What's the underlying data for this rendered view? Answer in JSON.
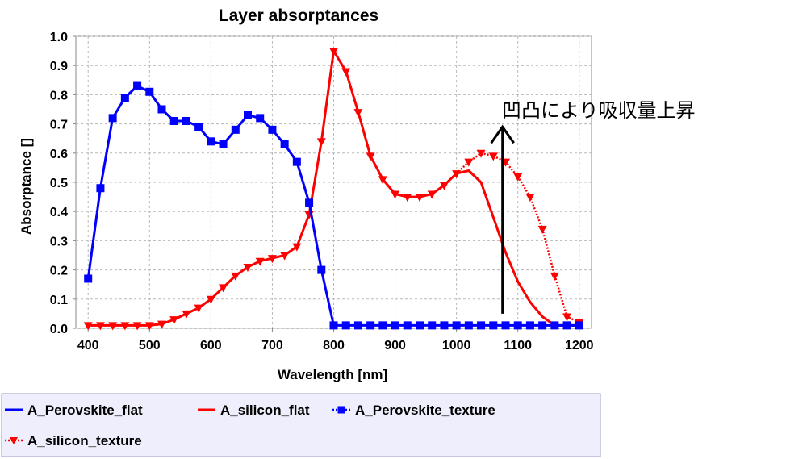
{
  "chart_data": {
    "type": "line",
    "title": "Layer absorptances",
    "xlabel": "Wavelength [nm]",
    "ylabel": "Absorptance []",
    "xlim": [
      380,
      1220
    ],
    "ylim": [
      0.0,
      1.0
    ],
    "xticks": [
      400,
      500,
      600,
      700,
      800,
      900,
      1000,
      1100,
      1200
    ],
    "yticks": [
      0.0,
      0.1,
      0.2,
      0.3,
      0.4,
      0.5,
      0.6,
      0.7,
      0.8,
      0.9,
      1.0
    ],
    "grid": true,
    "legend_position": "bottom",
    "series": [
      {
        "name": "A_Perovskite_flat",
        "color": "#0000ff",
        "line": "solid",
        "marker": "none",
        "x": [
          400,
          420,
          440,
          460,
          480,
          500,
          520,
          540,
          560,
          580,
          600,
          620,
          640,
          660,
          680,
          700,
          720,
          740,
          760,
          780,
          800,
          820,
          840,
          860,
          880,
          900,
          920,
          940,
          960,
          980,
          1000,
          1020,
          1040,
          1060,
          1080,
          1100,
          1120,
          1140,
          1160,
          1180,
          1200
        ],
        "y": [
          0.17,
          0.48,
          0.72,
          0.79,
          0.83,
          0.81,
          0.75,
          0.71,
          0.71,
          0.69,
          0.64,
          0.63,
          0.68,
          0.73,
          0.72,
          0.68,
          0.63,
          0.57,
          0.43,
          0.2,
          0.01,
          0.01,
          0.01,
          0.01,
          0.01,
          0.01,
          0.01,
          0.01,
          0.01,
          0.01,
          0.01,
          0.01,
          0.01,
          0.01,
          0.01,
          0.01,
          0.01,
          0.01,
          0.01,
          0.01,
          0.01
        ]
      },
      {
        "name": "A_silicon_flat",
        "color": "#ff0000",
        "line": "solid",
        "marker": "none",
        "x": [
          400,
          420,
          440,
          460,
          480,
          500,
          520,
          540,
          560,
          580,
          600,
          620,
          640,
          660,
          680,
          700,
          720,
          740,
          760,
          780,
          800,
          820,
          840,
          860,
          880,
          900,
          920,
          940,
          960,
          980,
          1000,
          1020,
          1040,
          1060,
          1080,
          1100,
          1120,
          1140,
          1160,
          1180,
          1200
        ],
        "y": [
          0.01,
          0.01,
          0.01,
          0.01,
          0.01,
          0.01,
          0.015,
          0.03,
          0.05,
          0.07,
          0.1,
          0.14,
          0.18,
          0.21,
          0.23,
          0.24,
          0.25,
          0.28,
          0.39,
          0.64,
          0.95,
          0.88,
          0.74,
          0.59,
          0.51,
          0.46,
          0.45,
          0.45,
          0.46,
          0.49,
          0.53,
          0.54,
          0.5,
          0.38,
          0.26,
          0.16,
          0.09,
          0.04,
          0.01,
          0.01,
          0.01
        ]
      },
      {
        "name": "A_Perovskite_texture",
        "color": "#0000ff",
        "line": "dotted",
        "marker": "square",
        "x": [
          400,
          420,
          440,
          460,
          480,
          500,
          520,
          540,
          560,
          580,
          600,
          620,
          640,
          660,
          680,
          700,
          720,
          740,
          760,
          780,
          800,
          820,
          840,
          860,
          880,
          900,
          920,
          940,
          960,
          980,
          1000,
          1020,
          1040,
          1060,
          1080,
          1100,
          1120,
          1140,
          1160,
          1180,
          1200
        ],
        "y": [
          0.17,
          0.48,
          0.72,
          0.79,
          0.83,
          0.81,
          0.75,
          0.71,
          0.71,
          0.69,
          0.64,
          0.63,
          0.68,
          0.73,
          0.72,
          0.68,
          0.63,
          0.57,
          0.43,
          0.2,
          0.01,
          0.01,
          0.01,
          0.01,
          0.01,
          0.01,
          0.01,
          0.01,
          0.01,
          0.01,
          0.01,
          0.01,
          0.01,
          0.01,
          0.01,
          0.01,
          0.01,
          0.01,
          0.01,
          0.01,
          0.01
        ]
      },
      {
        "name": "A_silicon_texture",
        "color": "#ff0000",
        "line": "dotted",
        "marker": "triangle-down",
        "x": [
          400,
          420,
          440,
          460,
          480,
          500,
          520,
          540,
          560,
          580,
          600,
          620,
          640,
          660,
          680,
          700,
          720,
          740,
          760,
          780,
          800,
          820,
          840,
          860,
          880,
          900,
          920,
          940,
          960,
          980,
          1000,
          1020,
          1040,
          1060,
          1080,
          1100,
          1120,
          1140,
          1160,
          1180,
          1200
        ],
        "y": [
          0.01,
          0.01,
          0.01,
          0.01,
          0.01,
          0.01,
          0.015,
          0.03,
          0.05,
          0.07,
          0.1,
          0.14,
          0.18,
          0.21,
          0.23,
          0.24,
          0.25,
          0.28,
          0.39,
          0.64,
          0.95,
          0.88,
          0.74,
          0.59,
          0.51,
          0.46,
          0.45,
          0.45,
          0.46,
          0.49,
          0.53,
          0.57,
          0.6,
          0.59,
          0.57,
          0.52,
          0.45,
          0.34,
          0.18,
          0.04,
          0.02
        ]
      }
    ],
    "annotations": [
      {
        "text": "凹凸により吸収量上昇",
        "arrow_x": 1075,
        "arrow_from_y": 0.05,
        "arrow_to_y": 0.69
      }
    ]
  }
}
